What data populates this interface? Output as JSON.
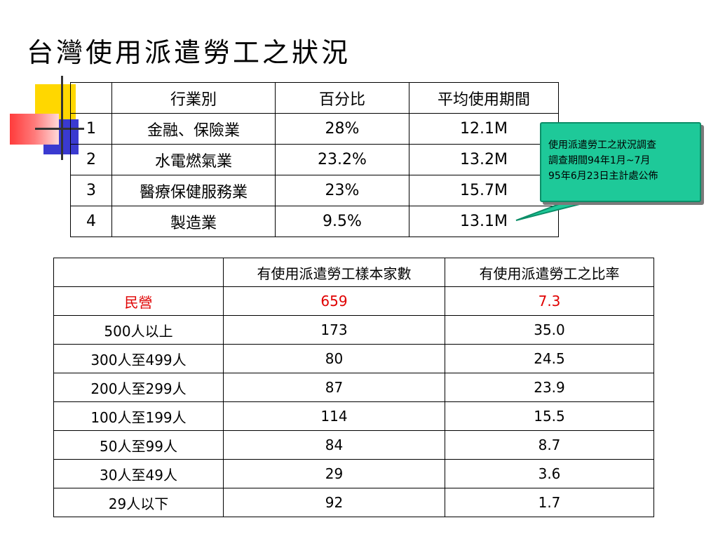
{
  "title": "台灣使用派遣勞工之狀況",
  "table1": {
    "headers": [
      "",
      "行業別",
      "百分比",
      "平均使用期間"
    ],
    "rows": [
      {
        "no": "1",
        "industry": "金融、保險業",
        "percent": "28%",
        "period": "12.1M"
      },
      {
        "no": "2",
        "industry": "水電燃氣業",
        "percent": "23.2%",
        "period": "13.2M"
      },
      {
        "no": "3",
        "industry": "醫療保健服務業",
        "percent": "23%",
        "period": "15.7M"
      },
      {
        "no": "4",
        "industry": "製造業",
        "percent": "9.5%",
        "period": "13.1M"
      }
    ]
  },
  "callout": {
    "line1": "使用派遣勞工之狀況調查",
    "line2": "調查期間94年1月~7月",
    "line3": "95年6月23日主計處公佈"
  },
  "table2": {
    "headers": [
      "",
      "有使用派遣勞工樣本家數",
      "有使用派遣勞工之比率"
    ],
    "rows": [
      {
        "label": "民營",
        "samples": "659",
        "ratio": "7.3"
      },
      {
        "label": "500人以上",
        "samples": "173",
        "ratio": "35.0"
      },
      {
        "label": "300人至499人",
        "samples": "80",
        "ratio": "24.5"
      },
      {
        "label": "200人至299人",
        "samples": "87",
        "ratio": "23.9"
      },
      {
        "label": "100人至199人",
        "samples": "114",
        "ratio": "15.5"
      },
      {
        "label": "50人至99人",
        "samples": "84",
        "ratio": "8.7"
      },
      {
        "label": "30人至49人",
        "samples": "29",
        "ratio": "3.6"
      },
      {
        "label": "29人以下",
        "samples": "92",
        "ratio": "1.7"
      }
    ]
  },
  "colors": {
    "highlight_row": "#e00000",
    "callout_fill": "#1ec999",
    "deco_yellow": "#ffd700",
    "deco_blue": "#3a3ad0",
    "deco_red": "#ff3b3b"
  }
}
